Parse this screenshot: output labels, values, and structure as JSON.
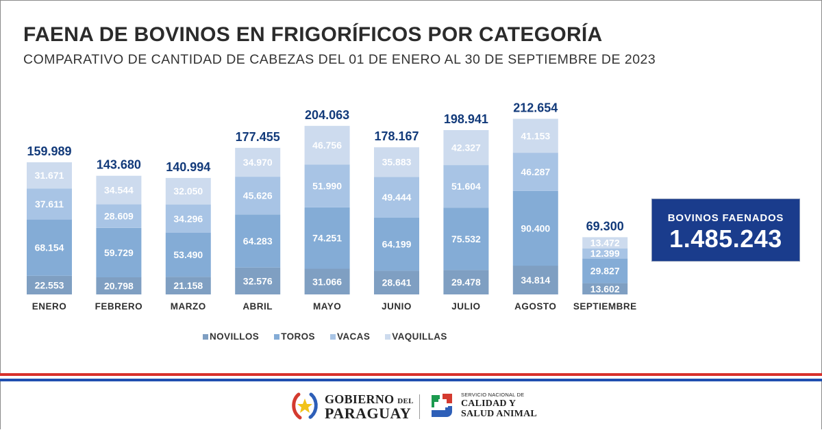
{
  "header": {
    "title": "FAENA DE BOVINOS EN FRIGORÍFICOS POR CATEGORÍA",
    "subtitle": "COMPARATIVO DE CANTIDAD DE CABEZAS DEL 01 DE ENERO AL 30 DE SEPTIEMBRE DE 2023"
  },
  "chart_data": {
    "type": "bar",
    "stacked": true,
    "title": "FAENA DE BOVINOS EN FRIGORÍFICOS POR CATEGORÍA",
    "subtitle": "COMPARATIVO DE CANTIDAD DE CABEZAS DEL 01 DE ENERO AL 30 DE SEPTIEMBRE DE 2023",
    "xlabel": "",
    "ylabel": "",
    "grid": false,
    "legend_position": "bottom-center",
    "categories": [
      "ENERO",
      "FEBRERO",
      "MARZO",
      "ABRIL",
      "MAYO",
      "JUNIO",
      "JULIO",
      "AGOSTO",
      "SEPTIEMBRE"
    ],
    "series": [
      {
        "name": "NOVILLOS",
        "color": "#7f9fc2",
        "values": [
          22553,
          20798,
          21158,
          32576,
          31066,
          28641,
          29478,
          34814,
          13602
        ]
      },
      {
        "name": "TOROS",
        "color": "#84acd6",
        "values": [
          68154,
          59729,
          53490,
          64283,
          74251,
          64199,
          75532,
          90400,
          29827
        ]
      },
      {
        "name": "VACAS",
        "color": "#a8c4e5",
        "values": [
          37611,
          28609,
          34296,
          45626,
          51990,
          49444,
          51604,
          46287,
          12399
        ]
      },
      {
        "name": "VAQUILLAS",
        "color": "#cddbee",
        "values": [
          31671,
          34544,
          32050,
          34970,
          46756,
          35883,
          42327,
          41153,
          13472
        ]
      }
    ],
    "segment_labels": [
      [
        "22.553",
        "20.798",
        "21.158",
        "32.576",
        "31.066",
        "28.641",
        "29.478",
        "34.814",
        "13.602"
      ],
      [
        "68.154",
        "59.729",
        "53.490",
        "64.283",
        "74.251",
        "64.199",
        "75.532",
        "90.400",
        "29.827"
      ],
      [
        "37.611",
        "28.609",
        "34.296",
        "45.626",
        "51.990",
        "49.444",
        "51.604",
        "46.287",
        "12.399"
      ],
      [
        "31.671",
        "34.544",
        "32.050",
        "34.970",
        "46.756",
        "35.883",
        "42.327",
        "41.153",
        "13.472"
      ]
    ],
    "totals": [
      159989,
      143680,
      140994,
      177455,
      204063,
      178167,
      198941,
      212654,
      69300
    ],
    "total_labels": [
      "159.989",
      "143.680",
      "140.994",
      "177.455",
      "204.063",
      "178.167",
      "198.941",
      "212.654",
      "69.300"
    ],
    "ylim": [
      0,
      240000
    ]
  },
  "legend": {
    "items": [
      {
        "label": "NOVILLOS",
        "color": "#7f9fc2"
      },
      {
        "label": "TOROS",
        "color": "#84acd6"
      },
      {
        "label": "VACAS",
        "color": "#a8c4e5"
      },
      {
        "label": "VAQUILLAS",
        "color": "#cddbee"
      }
    ]
  },
  "summary": {
    "label": "BOVINOS FAENADOS",
    "value": "1.485.243"
  },
  "colors": {
    "title_text": "#2b2b2b",
    "total_text": "#123a7a",
    "summary_bg": "#1a3c8c",
    "stripe_red": "#d7302b",
    "stripe_blue": "#1f4fb0"
  },
  "footer": {
    "gobierno_line1": "GOBIERNO",
    "gobierno_del": "DEL",
    "gobierno_line2": "PARAGUAY",
    "senacsa_line1": "SERVICIO NACIONAL DE",
    "senacsa_line2": "CALIDAD Y",
    "senacsa_line3": "SALUD ANIMAL"
  }
}
